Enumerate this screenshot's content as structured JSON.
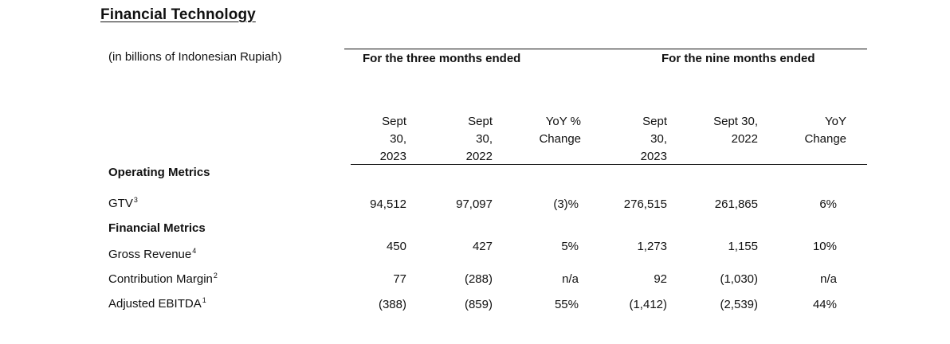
{
  "title": "Financial Technology",
  "units_note": "(in billions of Indonesian Rupiah)",
  "group_headers": {
    "three_months": "For the three months ended",
    "nine_months": "For the nine months ended"
  },
  "columns": [
    {
      "lines": [
        "Sept",
        "30,",
        "2023"
      ]
    },
    {
      "lines": [
        "Sept",
        "30,",
        "2022"
      ]
    },
    {
      "lines": [
        "YoY %",
        "Change"
      ]
    },
    {
      "lines": [
        "Sept",
        "30,",
        "2023"
      ]
    },
    {
      "lines": [
        "Sept 30,",
        "2022"
      ]
    },
    {
      "lines": [
        "YoY",
        "Change"
      ]
    }
  ],
  "sections": {
    "operating": "Operating Metrics",
    "financial": "Financial Metrics"
  },
  "rows": [
    {
      "label": "GTV",
      "footnote": "3",
      "values": [
        "94,512",
        "97,097",
        "(3)%",
        "276,515",
        "261,865",
        "6%"
      ]
    },
    {
      "label": "Gross Revenue",
      "footnote": "4",
      "values": [
        "450",
        "427",
        "5%",
        "1,273",
        "1,155",
        "10%"
      ]
    },
    {
      "label": "Contribution Margin",
      "footnote": "2",
      "values": [
        "77",
        "(288)",
        "n/a",
        "92",
        "(1,030)",
        "n/a"
      ]
    },
    {
      "label": "Adjusted EBITDA",
      "footnote": "1",
      "values": [
        "(388)",
        "(859)",
        "55%",
        "(1,412)",
        "(2,539)",
        "44%"
      ]
    }
  ]
}
